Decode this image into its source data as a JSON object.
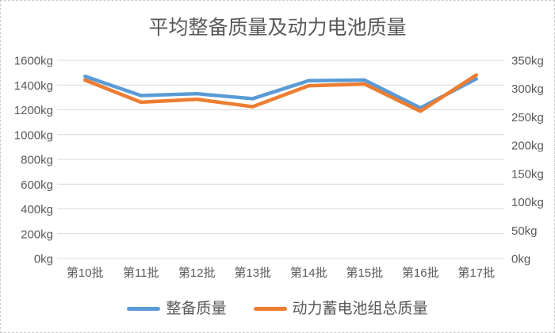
{
  "chart_data": {
    "type": "line",
    "title": "平均整备质量及动力电池质量",
    "categories": [
      "第10批",
      "第11批",
      "第12批",
      "第13批",
      "第14批",
      "第15批",
      "第16批",
      "第17批"
    ],
    "series": [
      {
        "name": "整备质量",
        "axis": "left",
        "color": "#5B9BD5",
        "values": [
          1470,
          1315,
          1330,
          1290,
          1435,
          1440,
          1215,
          1450
        ]
      },
      {
        "name": "动力蓄电池组总质量",
        "axis": "right",
        "color": "#ED7D31",
        "values": [
          315,
          276,
          281,
          268,
          305,
          308,
          260,
          324
        ]
      }
    ],
    "axes": {
      "left": {
        "min": 0,
        "max": 1600,
        "step": 200,
        "unit": "kg"
      },
      "right": {
        "min": 0,
        "max": 350,
        "step": 50,
        "unit": "kg"
      }
    },
    "grid": true,
    "legend_position": "bottom",
    "colors": {
      "grid": "#D9D9D9",
      "text": "#595959",
      "frame_border": "#C9C9C9"
    }
  }
}
